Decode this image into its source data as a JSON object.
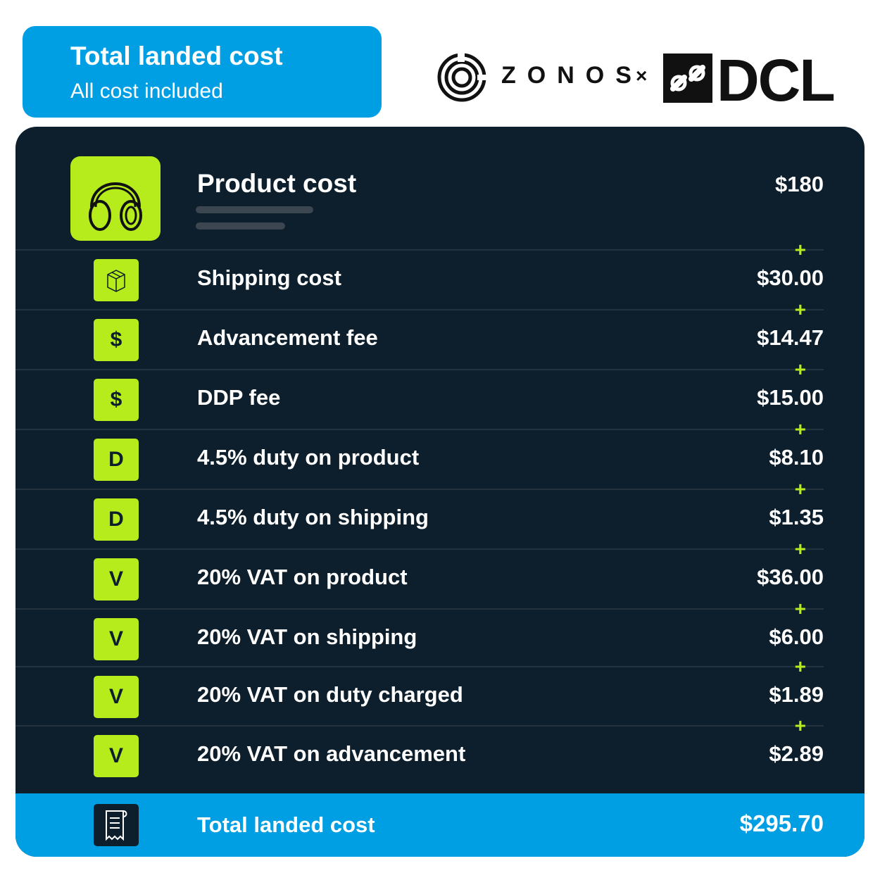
{
  "header": {
    "title": "Total landed cost",
    "subtitle": "All cost included"
  },
  "logos": {
    "zonos": "ZONOS",
    "separator": "×",
    "dcl": "DCL"
  },
  "product": {
    "label": "Product cost",
    "value": "$180",
    "icon": "headphones-icon"
  },
  "rows": [
    {
      "badge": "",
      "icon": "box-icon",
      "label": "Shipping cost",
      "value": "$30.00"
    },
    {
      "badge": "$",
      "label": "Advancement fee",
      "value": "$14.47"
    },
    {
      "badge": "$",
      "label": "DDP fee",
      "value": "$15.00"
    },
    {
      "badge": "D",
      "label": "4.5% duty on product",
      "value": "$8.10"
    },
    {
      "badge": "D",
      "label": "4.5% duty on shipping",
      "value": "$1.35"
    },
    {
      "badge": "V",
      "label": "20% VAT on product",
      "value": "$36.00"
    },
    {
      "badge": "V",
      "label": "20% VAT on shipping",
      "value": "$6.00"
    },
    {
      "badge": "V",
      "label": "20% VAT on duty charged",
      "value": "$1.89"
    },
    {
      "badge": "V",
      "label": "20% VAT on advancement",
      "value": "$2.89"
    }
  ],
  "plus_sign": "+",
  "total": {
    "label": "Total landed cost",
    "value": "$295.70",
    "icon": "receipt-icon"
  },
  "colors": {
    "brand_blue": "#009ee3",
    "panel_dark": "#0d1f2c",
    "accent_green": "#b6ec1c"
  }
}
